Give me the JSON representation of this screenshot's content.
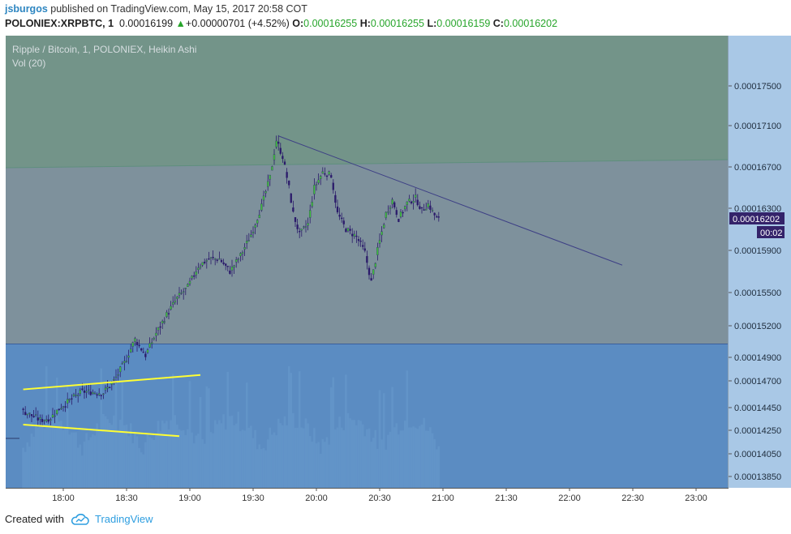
{
  "header": {
    "username": "jsburgos",
    "published_text": "published on TradingView.com, May 15, 2017 20:58 COT",
    "symbol": "POLONIEX:XRPBTC, 1",
    "last_price": "0.00016199",
    "change_arrow": "▲",
    "change": "+0.00000701 (+4.52%)",
    "o_label": "O:",
    "o_value": "0.00016255",
    "h_label": "H:",
    "h_value": "0.00016255",
    "l_label": "L:",
    "l_value": "0.00016159",
    "c_label": "C:",
    "c_value": "0.00016202"
  },
  "legend": {
    "series_title": "Ripple / Bitcoin, 1, POLONIEX, Heikin Ashi",
    "volume_title": "Vol (20)"
  },
  "price_badge": "0.00016202",
  "countdown_badge": "00:02",
  "footer": {
    "created_with": "Created with",
    "brand": "TradingView"
  },
  "colors": {
    "up_candle": "#3fc03b",
    "down_candle": "#2b1b6b",
    "zone_top": "#739489",
    "zone_middle": "#7e919c",
    "zone_bottom": "#5b8cc2",
    "axis_bg": "#a9c8e6",
    "badge": "#34236a",
    "trendline": "#3d3f85",
    "channel": "#ffff33"
  },
  "chart_data": {
    "type": "candlestick",
    "style": "Heikin Ashi",
    "symbol": "XRPBTC",
    "exchange": "POLONIEX",
    "interval_minutes": 1,
    "x_ticks": [
      "18:00",
      "18:30",
      "19:00",
      "19:30",
      "20:00",
      "20:30",
      "21:00",
      "21:30",
      "22:00",
      "22:30",
      "23:00"
    ],
    "y_ticks": [
      "0.00017500",
      "0.00017100",
      "0.00016700",
      "0.00016300",
      "0.00015900",
      "0.00015500",
      "0.00015200",
      "0.00014900",
      "0.00014700",
      "0.00014450",
      "0.00014250",
      "0.00014050",
      "0.00013850"
    ],
    "y_tick_values": [
      0.000175,
      0.000171,
      0.000167,
      0.000163,
      0.000159,
      0.000155,
      0.000152,
      0.000149,
      0.000147,
      0.0001445,
      0.0001425,
      0.0001405,
      0.0001385
    ],
    "price_path": [
      {
        "t": "17:41",
        "p": 0.0001443
      },
      {
        "t": "17:50",
        "p": 0.0001434
      },
      {
        "t": "17:55",
        "p": 0.0001436
      },
      {
        "t": "18:00",
        "p": 0.0001446
      },
      {
        "t": "18:10",
        "p": 0.000146
      },
      {
        "t": "18:20",
        "p": 0.0001459
      },
      {
        "t": "18:25",
        "p": 0.000147
      },
      {
        "t": "18:30",
        "p": 0.0001485
      },
      {
        "t": "18:35",
        "p": 0.0001507
      },
      {
        "t": "18:40",
        "p": 0.0001492
      },
      {
        "t": "18:45",
        "p": 0.0001513
      },
      {
        "t": "18:50",
        "p": 0.000153
      },
      {
        "t": "18:55",
        "p": 0.0001545
      },
      {
        "t": "19:00",
        "p": 0.0001555
      },
      {
        "t": "19:05",
        "p": 0.0001575
      },
      {
        "t": "19:10",
        "p": 0.0001582
      },
      {
        "t": "19:15",
        "p": 0.0001582
      },
      {
        "t": "19:20",
        "p": 0.000157
      },
      {
        "t": "19:25",
        "p": 0.0001585
      },
      {
        "t": "19:30",
        "p": 0.0001605
      },
      {
        "t": "19:35",
        "p": 0.0001632
      },
      {
        "t": "19:39",
        "p": 0.000166
      },
      {
        "t": "19:42",
        "p": 0.0001696
      },
      {
        "t": "19:45",
        "p": 0.000168
      },
      {
        "t": "19:48",
        "p": 0.000165
      },
      {
        "t": "19:50",
        "p": 0.0001625
      },
      {
        "t": "19:53",
        "p": 0.0001605
      },
      {
        "t": "19:57",
        "p": 0.0001615
      },
      {
        "t": "20:00",
        "p": 0.000165
      },
      {
        "t": "20:04",
        "p": 0.0001665
      },
      {
        "t": "20:08",
        "p": 0.0001662
      },
      {
        "t": "20:11",
        "p": 0.0001625
      },
      {
        "t": "20:15",
        "p": 0.000161
      },
      {
        "t": "20:20",
        "p": 0.0001603
      },
      {
        "t": "20:24",
        "p": 0.0001588
      },
      {
        "t": "20:27",
        "p": 0.000156
      },
      {
        "t": "20:30",
        "p": 0.000159
      },
      {
        "t": "20:34",
        "p": 0.0001625
      },
      {
        "t": "20:37",
        "p": 0.0001638
      },
      {
        "t": "20:40",
        "p": 0.000162
      },
      {
        "t": "20:44",
        "p": 0.0001635
      },
      {
        "t": "20:48",
        "p": 0.000164
      },
      {
        "t": "20:51",
        "p": 0.0001628
      },
      {
        "t": "20:54",
        "p": 0.0001634
      },
      {
        "t": "20:58",
        "p": 0.000162
      }
    ],
    "last_price": 0.00016202,
    "volume": {
      "label": "Vol (20)"
    },
    "drawings": {
      "trendline": {
        "from": {
          "t": "19:42",
          "p": 0.00017
        },
        "to": {
          "t": "22:25",
          "p": 0.0001576
        }
      },
      "channel_upper": {
        "from": {
          "t": "17:41",
          "p": 0.0001462
        },
        "to": {
          "t": "19:05",
          "p": 0.0001475
        }
      },
      "channel_lower": {
        "from": {
          "t": "17:41",
          "p": 0.000143
        },
        "to": {
          "t": "18:55",
          "p": 0.000142
        }
      }
    },
    "grid": false,
    "legend": "top-left"
  }
}
